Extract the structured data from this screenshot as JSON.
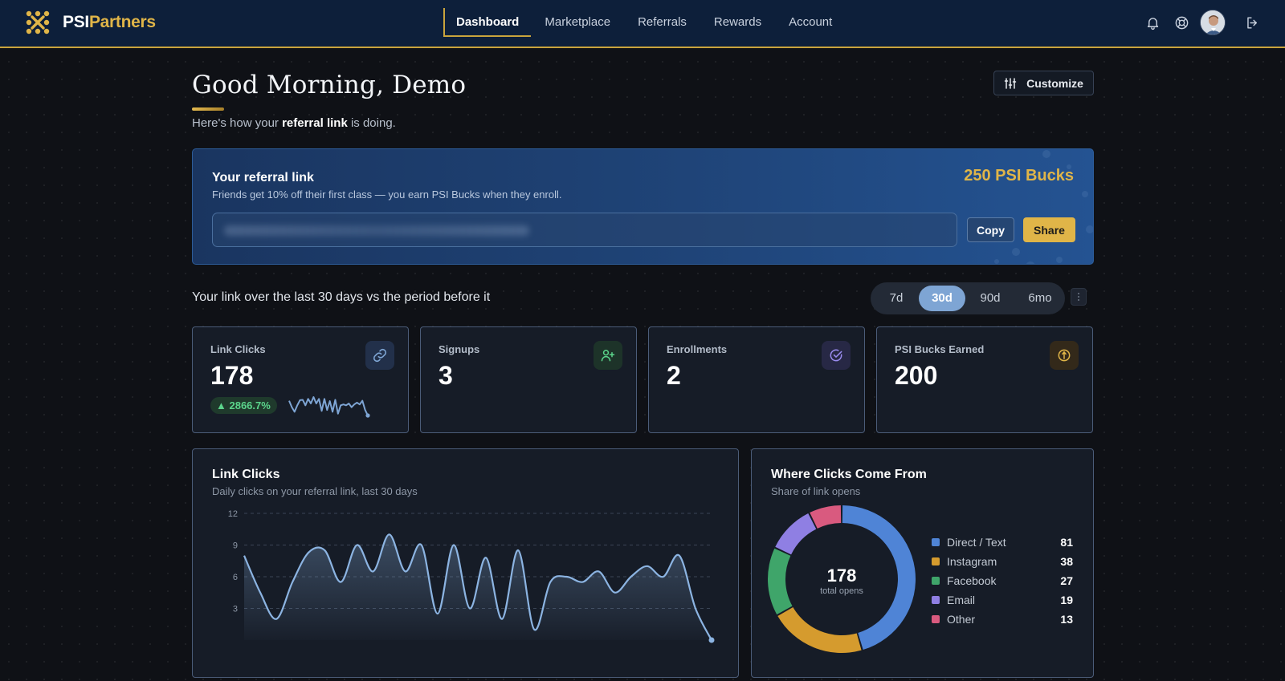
{
  "brand": {
    "name_a": "PSI",
    "name_b": "Partners"
  },
  "nav": {
    "links": [
      "Dashboard",
      "Marketplace",
      "Referrals",
      "Rewards",
      "Account"
    ],
    "active": "Dashboard",
    "icons": [
      "bell-icon",
      "help-icon",
      "avatar",
      "logout-icon"
    ]
  },
  "greeting": {
    "title": "Good Morning, Demo",
    "sub_before": "Here's how your ",
    "sub_bold": "referral link",
    "sub_after": " is doing.",
    "customize_label": "Customize"
  },
  "referral": {
    "title": "Your referral link",
    "desc": "Friends get 10% off their first class — you earn PSI Bucks when they enroll.",
    "bucks": "250 PSI Bucks",
    "link_value": "",
    "copy_label": "Copy",
    "share_label": "Share"
  },
  "period": {
    "text": "Your link over the last 30 days vs the period before it",
    "options": [
      "7d",
      "30d",
      "90d",
      "6mo"
    ],
    "selected": "30d"
  },
  "stats": [
    {
      "label": "Link Clicks",
      "value": "178",
      "delta": "▲ 2866.7%",
      "icon": "link-icon",
      "accent": "#7ea5d4"
    },
    {
      "label": "Signups",
      "value": "3",
      "icon": "user-plus-icon",
      "accent": "#5bd48b"
    },
    {
      "label": "Enrollments",
      "value": "2",
      "icon": "check-circle-icon",
      "accent": "#9b8cf0"
    },
    {
      "label": "PSI Bucks Earned",
      "value": "200",
      "icon": "coin-icon",
      "accent": "#e0b548"
    }
  ],
  "clicks_panel": {
    "title": "Link Clicks",
    "sub": "Daily clicks on your referral link, last 30 days"
  },
  "sources_panel": {
    "title": "Where Clicks Come From",
    "sub": "Share of link opens",
    "total": "178",
    "total_caption": "total opens"
  },
  "colors": {
    "accent": "#e0b548",
    "line": "#8cb4e2",
    "nav_bg": "#0d1f3a"
  },
  "chart_data": [
    {
      "type": "area",
      "title": "Link Clicks",
      "x": [
        1,
        2,
        3,
        4,
        5,
        6,
        7,
        8,
        9,
        10,
        11,
        12,
        13,
        14,
        15,
        16,
        17,
        18,
        19,
        20,
        21,
        22,
        23,
        24,
        25,
        26,
        27,
        28,
        29,
        30
      ],
      "values": [
        8,
        4.5,
        2,
        5.5,
        8.3,
        8.5,
        5.5,
        9,
        6.5,
        10,
        6.5,
        9,
        2.5,
        9,
        3,
        7.8,
        2,
        8.5,
        1,
        5.5,
        6,
        5.5,
        6.5,
        4.5,
        6,
        7,
        6,
        8,
        3,
        0
      ],
      "ylim": [
        0,
        12
      ],
      "yticks": [
        3,
        6,
        9,
        12
      ],
      "grid": true
    },
    {
      "type": "pie",
      "title": "Where Clicks Come From",
      "categories": [
        "Direct / Text",
        "Instagram",
        "Facebook",
        "Email",
        "Other"
      ],
      "values": [
        81,
        38,
        27,
        19,
        13
      ],
      "colors": [
        "#4f84d6",
        "#d59b2e",
        "#3fa56a",
        "#8f7fe3",
        "#d95a7f"
      ]
    }
  ]
}
